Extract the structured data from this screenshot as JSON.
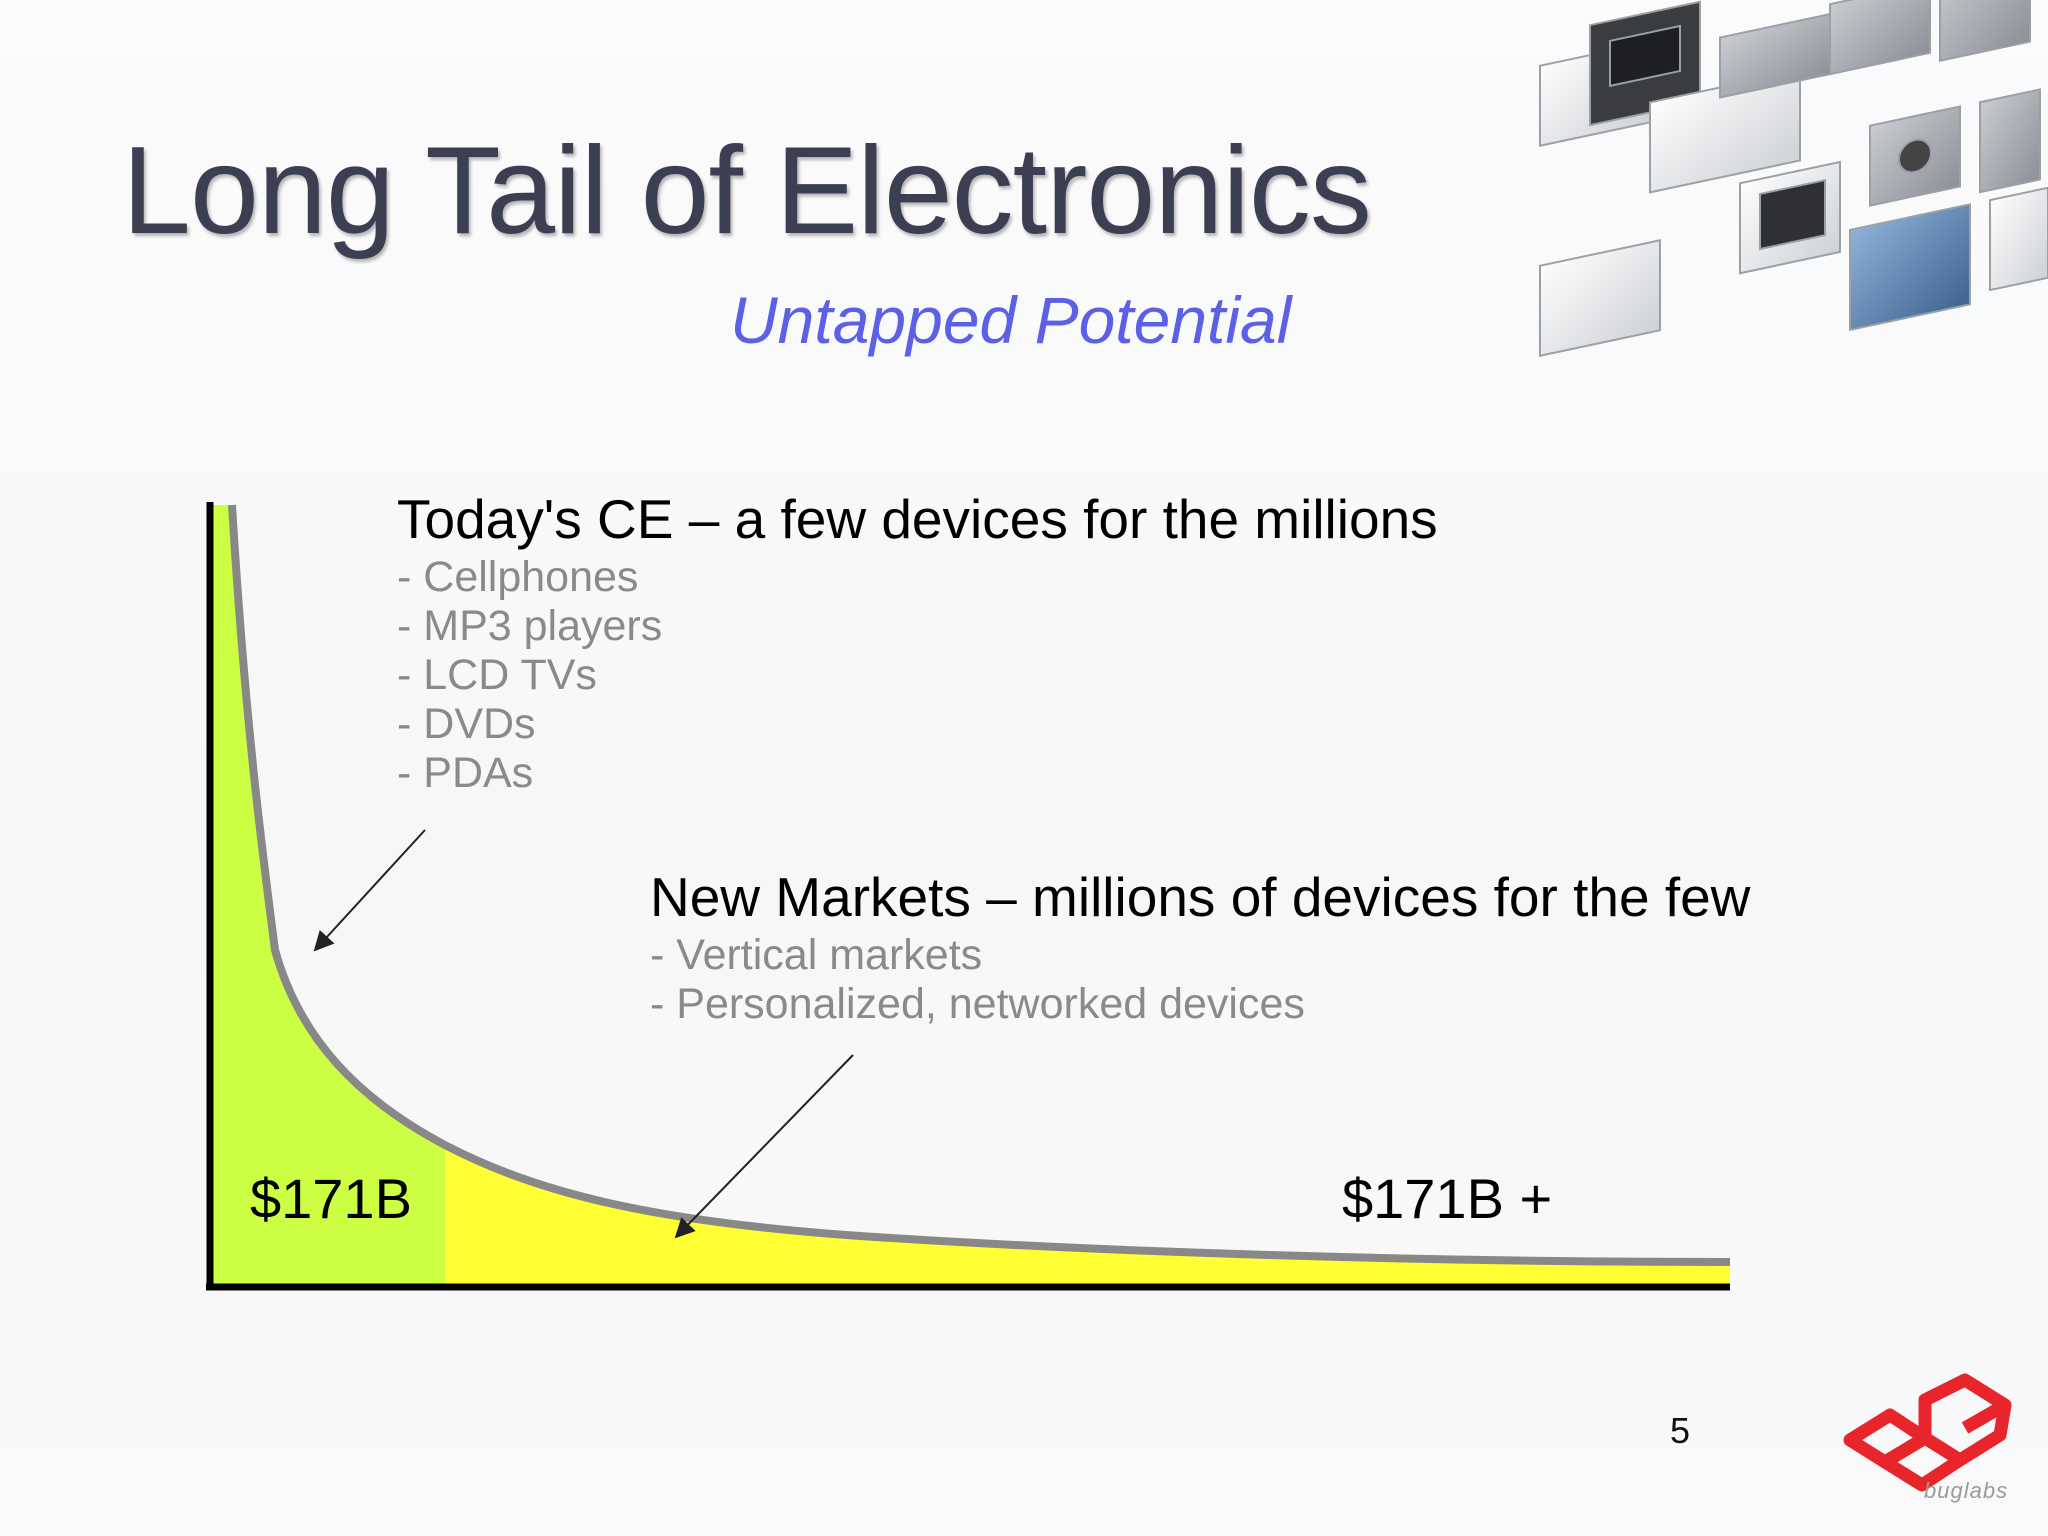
{
  "slide": {
    "title": "Long Tail of Electronics",
    "subtitle": "Untapped Potential",
    "page_number": "5",
    "logo_text": "buglabs"
  },
  "head_section": {
    "heading": "Today's CE – a few devices for the millions",
    "items": [
      "- Cellphones",
      "- MP3 players",
      "- LCD TVs",
      "- DVDs",
      "- PDAs"
    ],
    "value": "$171B",
    "color": "#ccff44"
  },
  "tail_section": {
    "heading": "New Markets – millions of devices for the few",
    "items": [
      "- Vertical markets",
      "- Personalized, networked devices"
    ],
    "value": "$171B +",
    "color": "#ffff33"
  },
  "colors": {
    "title": "#3c3f52",
    "subtitle": "#5b60e6",
    "curve": "#888888",
    "axis": "#000000",
    "logo": "#e8252b"
  }
}
